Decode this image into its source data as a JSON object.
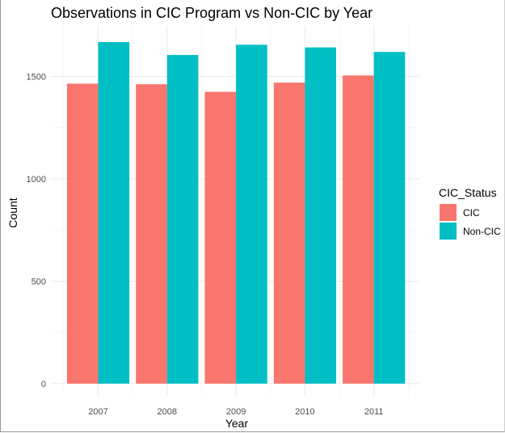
{
  "chart_data": {
    "type": "bar",
    "title": "Observations in CIC Program vs Non-CIC by Year",
    "xlabel": "Year",
    "ylabel": "Count",
    "categories": [
      "2007",
      "2008",
      "2009",
      "2010",
      "2011"
    ],
    "series": [
      {
        "name": "CIC",
        "color": "#F8766D",
        "values": [
          1465,
          1462,
          1425,
          1470,
          1505
        ]
      },
      {
        "name": "Non-CIC",
        "color": "#00BFC4",
        "values": [
          1668,
          1605,
          1655,
          1642,
          1620
        ]
      }
    ],
    "ylim": [
      0,
      1720
    ],
    "yticks": [
      0,
      500,
      1000,
      1500
    ],
    "legend": {
      "title": "CIC_Status",
      "position": "right"
    },
    "grid": true,
    "theme": "minimal"
  }
}
